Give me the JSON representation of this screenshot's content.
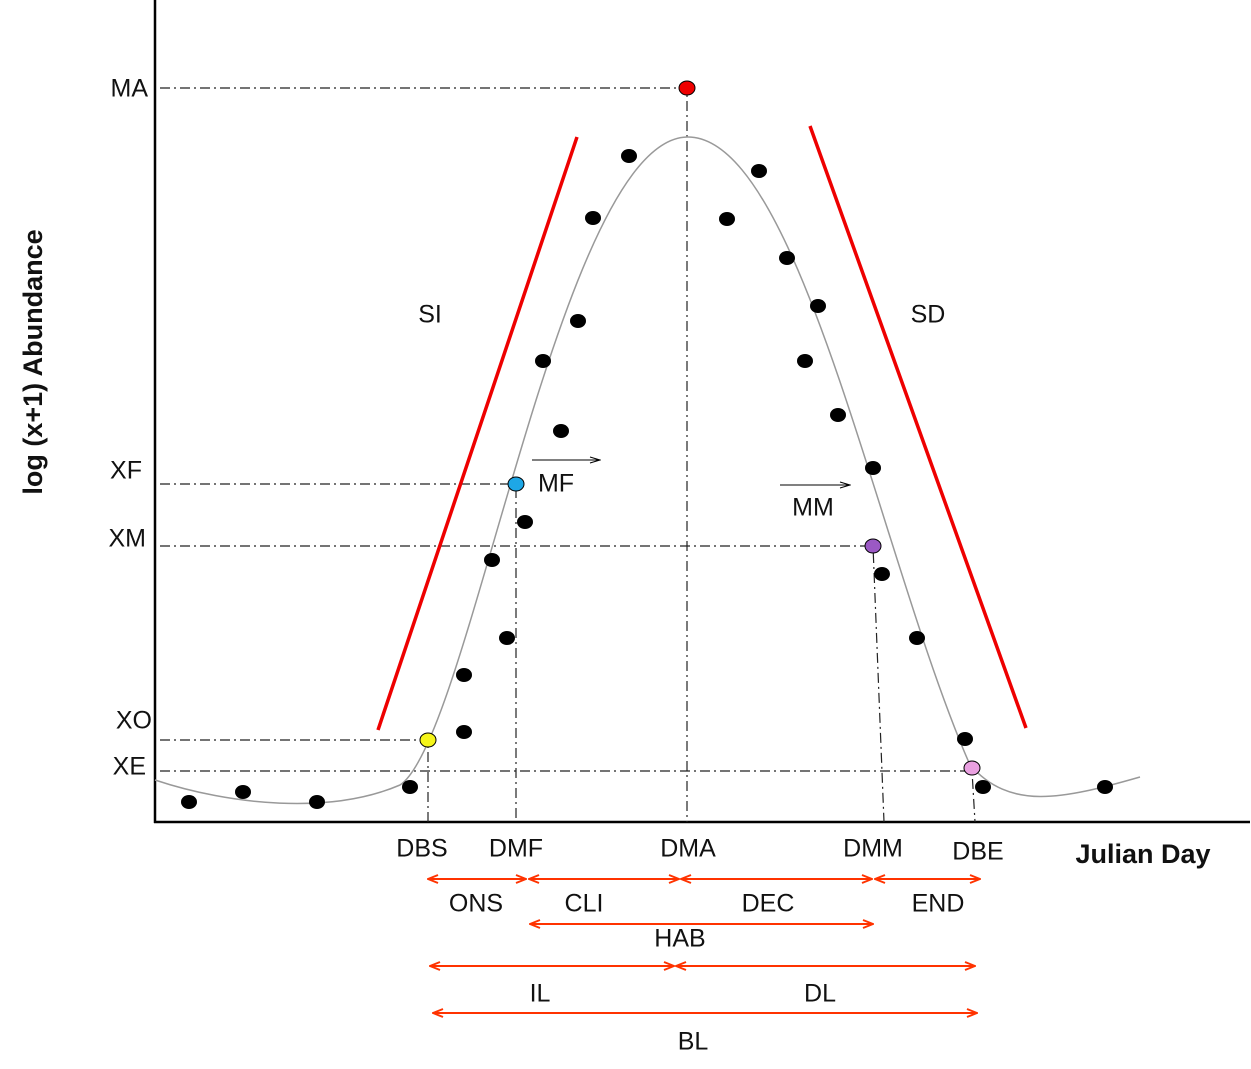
{
  "axes": {
    "y_label": "log (x+1) Abundance",
    "x_label": "Julian Day"
  },
  "y_levels": [
    "MA",
    "XF",
    "XM",
    "XO",
    "XE"
  ],
  "x_dates": [
    "DBS",
    "DMF",
    "DMA",
    "DMM",
    "DBE"
  ],
  "slopes": [
    "SI",
    "SD"
  ],
  "movements": [
    "MF",
    "MM"
  ],
  "intervals": [
    "ONS",
    "CLI",
    "DEC",
    "END",
    "HAB",
    "IL",
    "DL",
    "BL"
  ]
}
